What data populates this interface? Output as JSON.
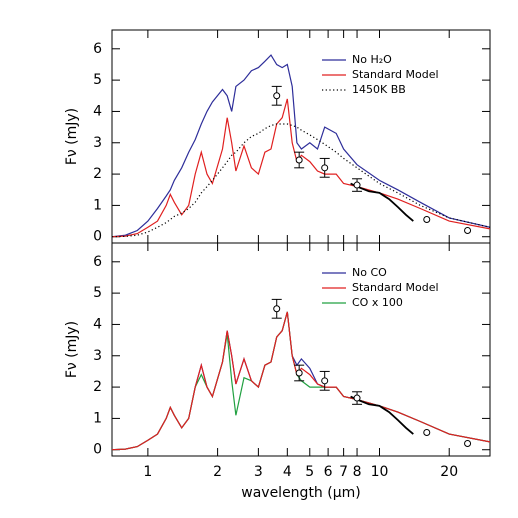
{
  "chart_data": [
    {
      "type": "line",
      "log_x": true,
      "legend": "upper right",
      "ylabel": "Fν (mJy)",
      "xlim": [
        0.7,
        30
      ],
      "ylim": [
        -0.2,
        6.6
      ],
      "yticks": [
        0,
        1,
        2,
        3,
        4,
        5,
        6
      ],
      "x": [
        0.7,
        0.8,
        0.9,
        1.0,
        1.1,
        1.2,
        1.25,
        1.3,
        1.4,
        1.5,
        1.6,
        1.7,
        1.8,
        1.9,
        2.1,
        2.2,
        2.3,
        2.4,
        2.6,
        2.8,
        3.0,
        3.2,
        3.4,
        3.6,
        3.8,
        4.0,
        4.2,
        4.4,
        4.6,
        5.0,
        5.4,
        5.8,
        6.5,
        7,
        8,
        10,
        12,
        15,
        20,
        30
      ],
      "series": [
        {
          "name": "No H₂O",
          "color": "#2e2e9a",
          "values": [
            0,
            0.05,
            0.2,
            0.5,
            0.9,
            1.3,
            1.5,
            1.8,
            2.2,
            2.7,
            3.1,
            3.6,
            4.0,
            4.3,
            4.7,
            4.5,
            4.0,
            4.8,
            5.0,
            5.3,
            5.4,
            5.6,
            5.8,
            5.5,
            5.4,
            5.5,
            4.8,
            3.0,
            2.8,
            3.0,
            2.8,
            3.5,
            3.3,
            2.8,
            2.3,
            1.8,
            1.5,
            1.1,
            0.6,
            0.3
          ]
        },
        {
          "name": "Standard Model",
          "color": "#e02020",
          "values": [
            0,
            0.02,
            0.1,
            0.3,
            0.5,
            1.0,
            1.35,
            1.1,
            0.7,
            1.0,
            2.0,
            2.7,
            2.0,
            1.7,
            2.8,
            3.8,
            3.0,
            2.1,
            2.9,
            2.2,
            2.0,
            2.7,
            2.8,
            3.6,
            3.8,
            4.4,
            3.0,
            2.4,
            2.6,
            2.4,
            2.1,
            2.0,
            2.0,
            1.7,
            1.6,
            1.4,
            1.2,
            0.9,
            0.5,
            0.25
          ]
        },
        {
          "name": "1450K BB",
          "color": "#000000",
          "dash": "dotted",
          "values": [
            0,
            0.01,
            0.05,
            0.15,
            0.3,
            0.45,
            0.55,
            0.65,
            0.75,
            0.9,
            1.1,
            1.4,
            1.6,
            1.8,
            2.2,
            2.4,
            2.6,
            2.7,
            3.0,
            3.2,
            3.3,
            3.45,
            3.55,
            3.6,
            3.6,
            3.6,
            3.55,
            3.5,
            3.4,
            3.25,
            3.1,
            2.95,
            2.7,
            2.5,
            2.2,
            1.7,
            1.4,
            1.0,
            0.6,
            0.3
          ]
        }
      ],
      "spectrum": {
        "x": [
          7.5,
          8,
          9,
          10,
          11,
          12,
          13,
          14
        ],
        "values": [
          1.7,
          1.6,
          1.45,
          1.4,
          1.2,
          0.95,
          0.7,
          0.5
        ]
      },
      "observations": {
        "x": [
          3.6,
          4.5,
          5.8,
          8.0,
          16,
          24
        ],
        "values": [
          4.5,
          2.45,
          2.2,
          1.65,
          0.55,
          0.2
        ],
        "errors": [
          0.3,
          0.25,
          0.3,
          0.2,
          0.05,
          0.05
        ]
      }
    },
    {
      "type": "line",
      "log_x": true,
      "legend": "upper right",
      "ylabel": "Fν (mJy)",
      "xlabel": "wavelength (μm)",
      "xlim": [
        0.7,
        30
      ],
      "xticks": [
        1,
        2,
        3,
        4,
        5,
        6,
        7,
        8,
        10,
        20
      ],
      "ylim": [
        -0.2,
        6.6
      ],
      "yticks": [
        0,
        1,
        2,
        3,
        4,
        5,
        6
      ],
      "x": [
        0.7,
        0.8,
        0.9,
        1.0,
        1.1,
        1.2,
        1.25,
        1.3,
        1.4,
        1.5,
        1.6,
        1.7,
        1.8,
        1.9,
        2.1,
        2.2,
        2.3,
        2.4,
        2.6,
        2.8,
        3.0,
        3.2,
        3.4,
        3.6,
        3.8,
        4.0,
        4.2,
        4.4,
        4.6,
        5.0,
        5.4,
        5.8,
        6.5,
        7,
        8,
        10,
        12,
        15,
        20,
        30
      ],
      "series": [
        {
          "name": "No CO",
          "color": "#2e2e9a",
          "values": [
            0,
            0.02,
            0.1,
            0.3,
            0.5,
            1.0,
            1.35,
            1.1,
            0.7,
            1.0,
            2.0,
            2.7,
            2.0,
            1.7,
            2.8,
            3.8,
            3.0,
            2.1,
            2.9,
            2.2,
            2.0,
            2.7,
            2.8,
            3.6,
            3.8,
            4.4,
            3.0,
            2.7,
            2.9,
            2.6,
            2.1,
            2.0,
            2.0,
            1.7,
            1.6,
            1.4,
            1.2,
            0.9,
            0.5,
            0.25
          ]
        },
        {
          "name": "Standard Model",
          "color": "#e02020",
          "values": [
            0,
            0.02,
            0.1,
            0.3,
            0.5,
            1.0,
            1.35,
            1.1,
            0.7,
            1.0,
            2.0,
            2.7,
            2.0,
            1.7,
            2.8,
            3.8,
            3.0,
            2.1,
            2.9,
            2.2,
            2.0,
            2.7,
            2.8,
            3.6,
            3.8,
            4.4,
            3.0,
            2.4,
            2.6,
            2.4,
            2.1,
            2.0,
            2.0,
            1.7,
            1.6,
            1.4,
            1.2,
            0.9,
            0.5,
            0.25
          ]
        },
        {
          "name": "CO x 100",
          "color": "#20a040",
          "values": [
            0,
            0.02,
            0.1,
            0.3,
            0.5,
            1.0,
            1.35,
            1.1,
            0.7,
            1.0,
            2.0,
            2.4,
            2.0,
            1.7,
            2.8,
            3.7,
            2.2,
            1.1,
            2.3,
            2.2,
            2.0,
            2.7,
            2.8,
            3.6,
            3.8,
            4.4,
            3.0,
            2.4,
            2.2,
            2.0,
            2.0,
            2.0,
            2.0,
            1.7,
            1.6,
            1.4,
            1.2,
            0.9,
            0.5,
            0.25
          ]
        }
      ],
      "draw_order": [
        0,
        2,
        1
      ],
      "spectrum": {
        "x": [
          7.5,
          8,
          9,
          10,
          11,
          12,
          13,
          14
        ],
        "values": [
          1.7,
          1.6,
          1.45,
          1.4,
          1.2,
          0.95,
          0.7,
          0.5
        ]
      },
      "observations": {
        "x": [
          3.6,
          4.5,
          5.8,
          8.0,
          16,
          24
        ],
        "values": [
          4.5,
          2.45,
          2.2,
          1.65,
          0.55,
          0.2
        ],
        "errors": [
          0.3,
          0.25,
          0.3,
          0.2,
          0.05,
          0.05
        ]
      }
    }
  ]
}
